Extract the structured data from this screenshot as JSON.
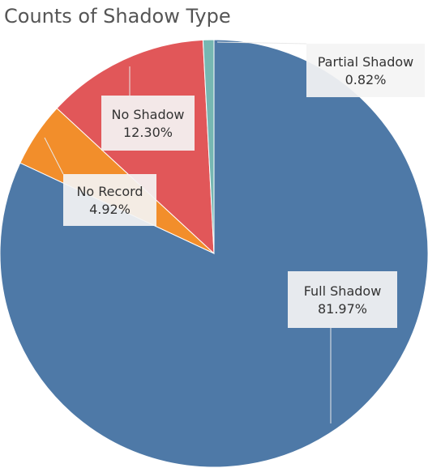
{
  "chart_data": {
    "type": "pie",
    "title": "Counts of Shadow Type",
    "slices": [
      {
        "label": "Full Shadow",
        "pct_label": "81.97%",
        "value": 81.97,
        "color": "#4e79a7"
      },
      {
        "label": "No Record",
        "pct_label": "4.92%",
        "value": 4.92,
        "color": "#f28e2b"
      },
      {
        "label": "No Shadow",
        "pct_label": "12.30%",
        "value": 12.3,
        "color": "#e15759"
      },
      {
        "label": "Partial Shadow",
        "pct_label": "0.82%",
        "value": 0.82,
        "color": "#76b7b2"
      }
    ]
  }
}
